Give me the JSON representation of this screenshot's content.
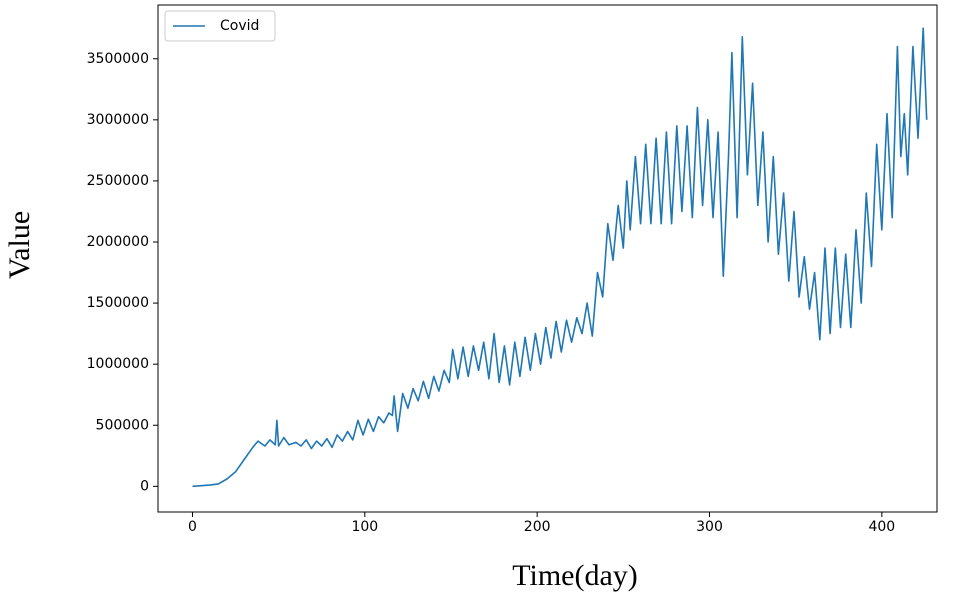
{
  "chart_data": {
    "type": "line",
    "xlabel": "Time(day)",
    "ylabel": "Value",
    "x": [
      0,
      10,
      15,
      20,
      25,
      30,
      35,
      38,
      42,
      45,
      48,
      49,
      50,
      53,
      56,
      60,
      63,
      66,
      69,
      72,
      75,
      78,
      81,
      84,
      87,
      90,
      93,
      96,
      99,
      102,
      105,
      108,
      111,
      114,
      116,
      117,
      119,
      122,
      125,
      128,
      131,
      134,
      137,
      140,
      143,
      146,
      149,
      151,
      154,
      157,
      160,
      163,
      166,
      169,
      172,
      175,
      178,
      181,
      184,
      187,
      190,
      193,
      196,
      199,
      202,
      205,
      208,
      211,
      214,
      217,
      220,
      223,
      226,
      229,
      232,
      235,
      238,
      241,
      244,
      247,
      250,
      252,
      254,
      257,
      260,
      263,
      266,
      269,
      272,
      275,
      278,
      281,
      284,
      287,
      290,
      293,
      296,
      299,
      302,
      305,
      308,
      311,
      313,
      316,
      319,
      322,
      325,
      328,
      331,
      334,
      337,
      340,
      343,
      346,
      349,
      352,
      355,
      358,
      361,
      364,
      367,
      370,
      373,
      376,
      379,
      382,
      385,
      388,
      391,
      394,
      397,
      400,
      403,
      406,
      409,
      411,
      413,
      415,
      418,
      421,
      424,
      426
    ],
    "series": [
      {
        "name": "Covid",
        "color": "#1f77b4",
        "values": [
          0,
          10000,
          20000,
          60000,
          120000,
          220000,
          320000,
          370000,
          330000,
          380000,
          340000,
          540000,
          330000,
          400000,
          340000,
          360000,
          330000,
          380000,
          310000,
          370000,
          330000,
          390000,
          320000,
          420000,
          370000,
          450000,
          380000,
          540000,
          420000,
          550000,
          450000,
          570000,
          520000,
          600000,
          580000,
          740000,
          450000,
          760000,
          640000,
          800000,
          700000,
          860000,
          720000,
          900000,
          780000,
          950000,
          850000,
          1120000,
          880000,
          1140000,
          900000,
          1150000,
          950000,
          1180000,
          880000,
          1250000,
          850000,
          1150000,
          830000,
          1180000,
          900000,
          1220000,
          950000,
          1250000,
          1000000,
          1300000,
          1050000,
          1350000,
          1100000,
          1360000,
          1180000,
          1380000,
          1250000,
          1500000,
          1230000,
          1750000,
          1550000,
          2150000,
          1850000,
          2300000,
          1950000,
          2500000,
          2100000,
          2700000,
          2150000,
          2800000,
          2150000,
          2850000,
          2150000,
          2900000,
          2150000,
          2950000,
          2250000,
          2950000,
          2200000,
          3100000,
          2300000,
          3000000,
          2200000,
          2900000,
          1720000,
          2700000,
          3550000,
          2200000,
          3680000,
          2550000,
          3300000,
          2300000,
          2900000,
          2000000,
          2700000,
          1900000,
          2400000,
          1680000,
          2250000,
          1550000,
          1880000,
          1450000,
          1750000,
          1200000,
          1950000,
          1250000,
          1950000,
          1300000,
          1900000,
          1300000,
          2100000,
          1500000,
          2400000,
          1800000,
          2800000,
          2100000,
          3050000,
          2200000,
          3600000,
          2700000,
          3050000,
          2550000,
          3600000,
          2850000,
          3750000,
          3000000
        ]
      }
    ],
    "xlim": [
      -20,
      432
    ],
    "ylim": [
      -210000,
      3940000
    ],
    "xticks": [
      0,
      100,
      200,
      300,
      400
    ],
    "yticks": [
      0,
      500000,
      1000000,
      1500000,
      2000000,
      2500000,
      3000000,
      3500000
    ],
    "legend": "upper left"
  }
}
